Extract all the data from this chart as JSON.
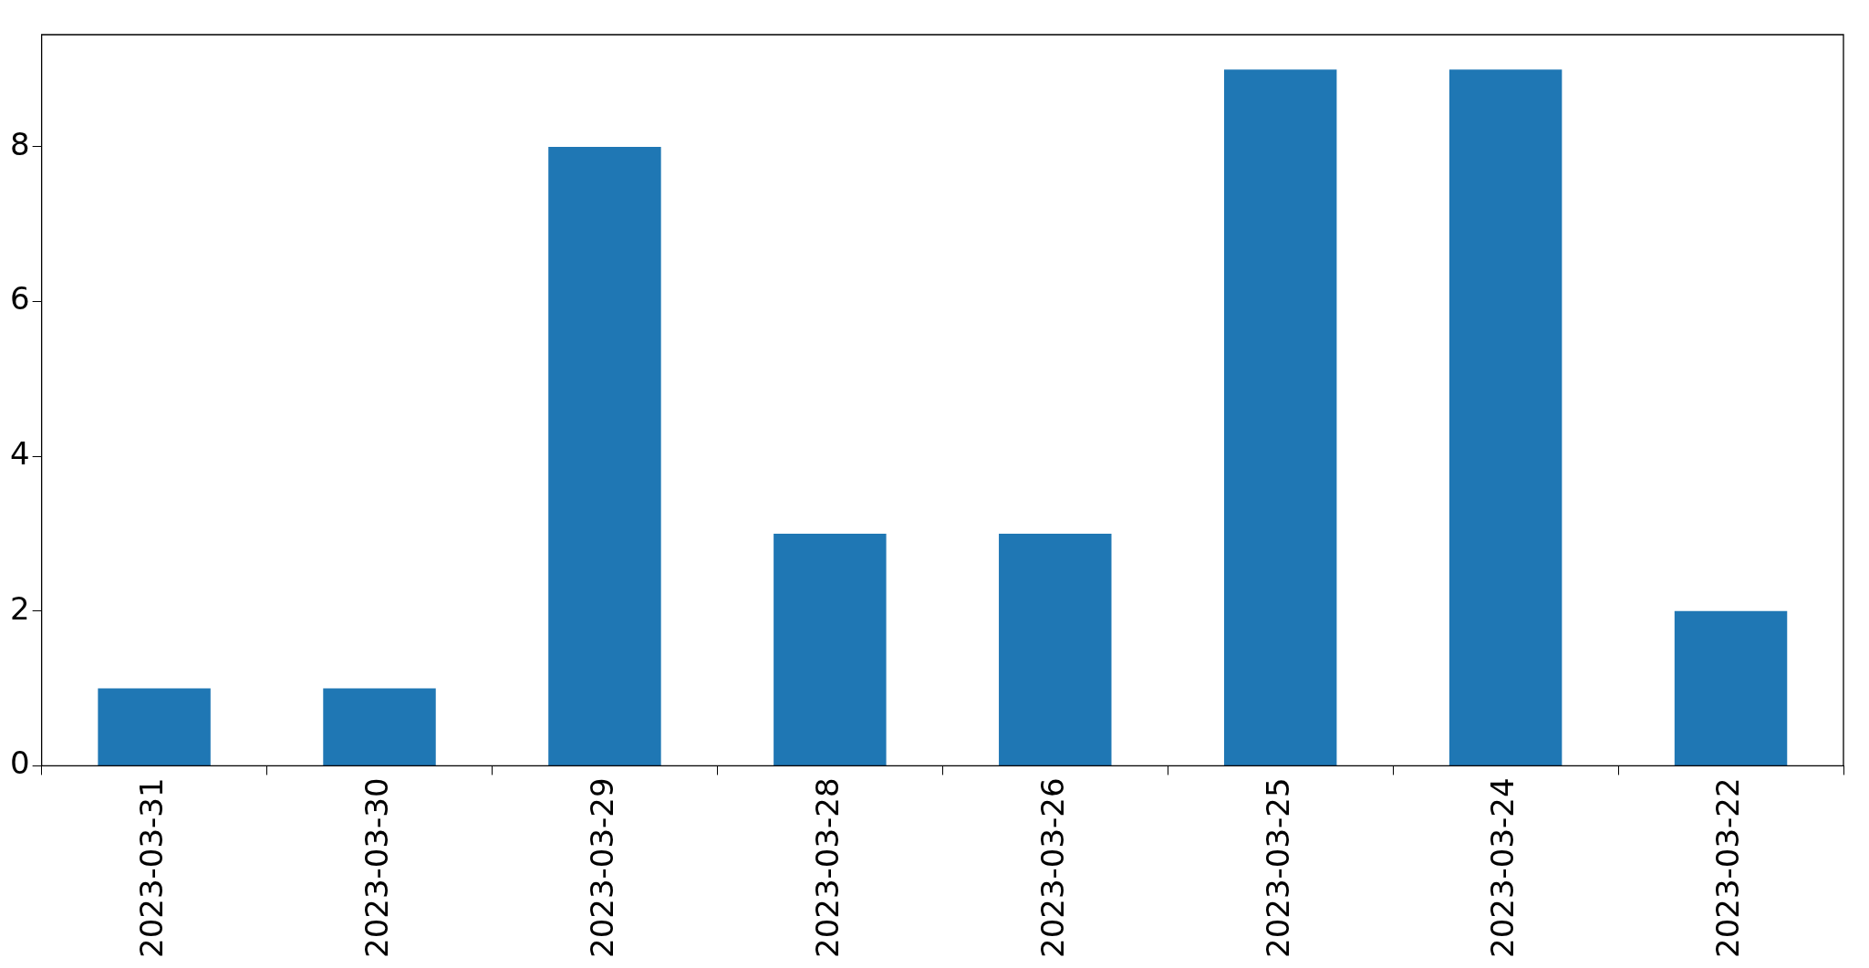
{
  "chart_data": {
    "type": "bar",
    "categories": [
      "2023-03-31",
      "2023-03-30",
      "2023-03-29",
      "2023-03-28",
      "2023-03-26",
      "2023-03-25",
      "2023-03-24",
      "2023-03-22"
    ],
    "values": [
      1,
      1,
      8,
      3,
      3,
      9,
      9,
      2
    ],
    "color": "#1f77b4",
    "ylim": [
      0,
      9.45
    ],
    "yticks": [
      0,
      2,
      4,
      6,
      8
    ],
    "grid": false,
    "legend": false
  }
}
